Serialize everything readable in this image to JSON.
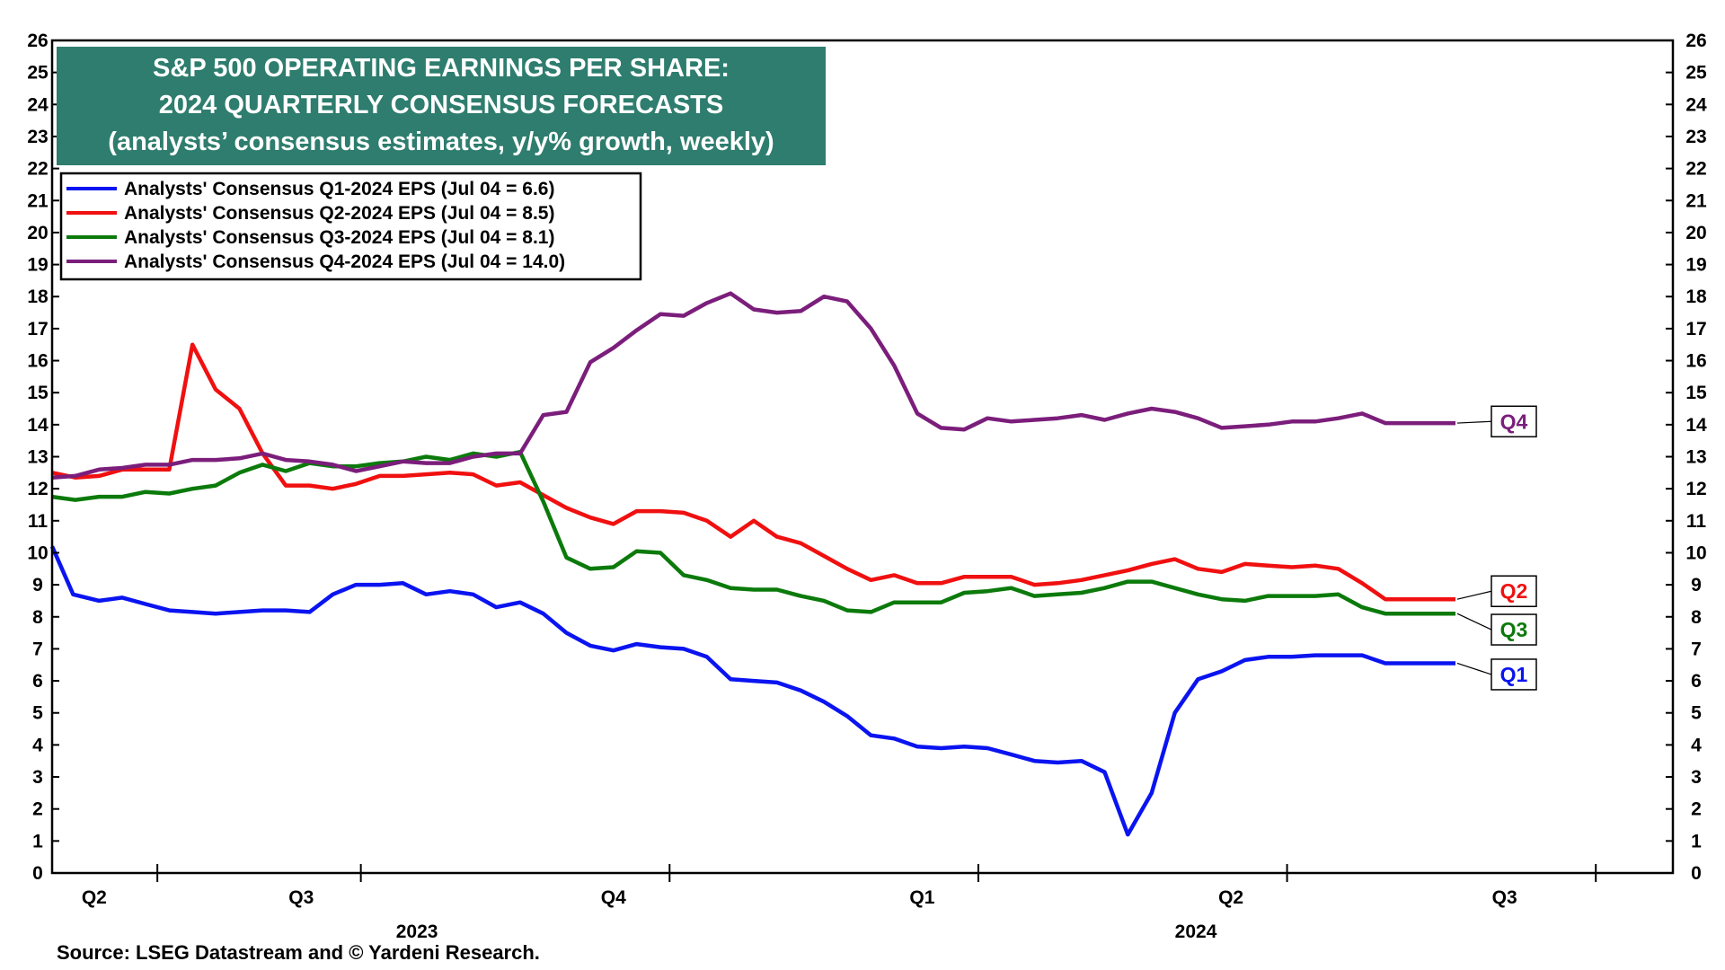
{
  "chart_data": {
    "type": "line",
    "title_lines": [
      "S&P 500 OPERATING EARNINGS PER SHARE:",
      "2024 QUARTERLY CONSENSUS FORECASTS",
      "(analysts’ consensus estimates, y/y% growth, weekly)"
    ],
    "source": "Source: LSEG Datastream and © Yardeni Research.",
    "ylim": [
      0,
      26
    ],
    "yticks": [
      "0",
      "1",
      "2",
      "3",
      "4",
      "5",
      "6",
      "7",
      "8",
      "9",
      "10",
      "11",
      "12",
      "13",
      "14",
      "15",
      "16",
      "17",
      "18",
      "19",
      "20",
      "21",
      "22",
      "23",
      "24",
      "25",
      "26"
    ],
    "xlim": [
      0,
      27.5
    ],
    "quarter_labels": [
      {
        "label": "Q2",
        "x": 0.6
      },
      {
        "label": "Q3",
        "x": 3.55
      },
      {
        "label": "Q4",
        "x": 8.0
      },
      {
        "label": "Q1",
        "x": 12.4
      },
      {
        "label": "Q2",
        "x": 16.8
      },
      {
        "label": "Q3",
        "x": 20.7
      }
    ],
    "year_labels": [
      {
        "label": "2023",
        "x": 5.2
      },
      {
        "label": "2024",
        "x": 16.3
      }
    ],
    "quarter_ticks": [
      1.5,
      4.4,
      8.8,
      13.2,
      17.6,
      22.0
    ],
    "series": [
      {
        "name": "Analysts' Consensus Q1-2024 EPS (Jul 04 = 6.6)",
        "short": "Q1",
        "color": "#0a14f0",
        "label_y": 6.2,
        "x": [
          0,
          0.3,
          0.67,
          1.0,
          1.33,
          1.67,
          2.0,
          2.33,
          2.67,
          3.0,
          3.33,
          3.67,
          4.0,
          4.33,
          4.67,
          5.0,
          5.33,
          5.67,
          6.0,
          6.33,
          6.67,
          7.0,
          7.33,
          7.67,
          8.0,
          8.33,
          8.67,
          9.0,
          9.33,
          9.67,
          10.0,
          10.33,
          10.67,
          11.0,
          11.33,
          11.67,
          12.0,
          12.33,
          12.67,
          13.0,
          13.33,
          13.67,
          14.0,
          14.33,
          14.67,
          15.0,
          15.33,
          15.67,
          16.0,
          16.33,
          16.67,
          17.0,
          17.33,
          17.67,
          18.0,
          18.33,
          18.67,
          19.0,
          19.33,
          19.67,
          20.0
        ],
        "y": [
          10.2,
          8.7,
          8.5,
          8.6,
          8.4,
          8.2,
          8.15,
          8.1,
          8.15,
          8.2,
          8.2,
          8.15,
          8.7,
          9.0,
          9.0,
          9.05,
          8.7,
          8.8,
          8.7,
          8.3,
          8.45,
          8.1,
          7.5,
          7.1,
          6.95,
          7.15,
          7.05,
          7.0,
          6.75,
          6.05,
          6.0,
          5.95,
          5.7,
          5.35,
          4.9,
          4.3,
          4.2,
          3.95,
          3.9,
          3.95,
          3.9,
          3.7,
          3.5,
          3.45,
          3.5,
          3.15,
          1.2,
          2.5,
          5.0,
          6.05,
          6.3,
          6.65,
          6.75,
          6.75,
          6.8,
          6.8,
          6.8,
          6.55,
          6.55,
          6.55,
          6.55
        ]
      },
      {
        "name": "Analysts' Consensus Q2-2024 EPS (Jul 04 = 8.5)",
        "short": "Q2",
        "color": "#f01010",
        "label_y": 8.8,
        "x": [
          0,
          0.33,
          0.67,
          1.0,
          1.33,
          1.67,
          2.0,
          2.33,
          2.67,
          3.0,
          3.33,
          3.67,
          4.0,
          4.33,
          4.67,
          5.0,
          5.33,
          5.67,
          6.0,
          6.33,
          6.67,
          7.0,
          7.33,
          7.67,
          8.0,
          8.33,
          8.67,
          9.0,
          9.33,
          9.67,
          10.0,
          10.33,
          10.67,
          11.0,
          11.33,
          11.67,
          12.0,
          12.33,
          12.67,
          13.0,
          13.33,
          13.67,
          14.0,
          14.33,
          14.67,
          15.0,
          15.33,
          15.67,
          16.0,
          16.33,
          16.67,
          17.0,
          17.33,
          17.67,
          18.0,
          18.33,
          18.67,
          19.0,
          19.33,
          19.67,
          20.0
        ],
        "y": [
          12.5,
          12.35,
          12.4,
          12.6,
          12.6,
          12.6,
          16.5,
          15.1,
          14.5,
          13.1,
          12.1,
          12.1,
          12.0,
          12.15,
          12.4,
          12.4,
          12.45,
          12.5,
          12.45,
          12.1,
          12.2,
          11.8,
          11.4,
          11.1,
          10.9,
          11.3,
          11.3,
          11.25,
          11.0,
          10.5,
          11.0,
          10.5,
          10.3,
          9.9,
          9.5,
          9.15,
          9.3,
          9.05,
          9.05,
          9.25,
          9.25,
          9.25,
          9.0,
          9.05,
          9.15,
          9.3,
          9.45,
          9.65,
          9.8,
          9.5,
          9.4,
          9.65,
          9.6,
          9.55,
          9.6,
          9.5,
          9.05,
          8.55,
          8.55,
          8.55,
          8.55
        ]
      },
      {
        "name": "Analysts' Consensus Q3-2024 EPS (Jul 04 = 8.1)",
        "short": "Q3",
        "color": "#0b7a0b",
        "label_y": 7.6,
        "x": [
          0,
          0.33,
          0.67,
          1.0,
          1.33,
          1.67,
          2.0,
          2.33,
          2.67,
          3.0,
          3.33,
          3.67,
          4.0,
          4.33,
          4.67,
          5.0,
          5.33,
          5.67,
          6.0,
          6.33,
          6.67,
          7.0,
          7.33,
          7.67,
          8.0,
          8.33,
          8.67,
          9.0,
          9.33,
          9.67,
          10.0,
          10.33,
          10.67,
          11.0,
          11.33,
          11.67,
          12.0,
          12.33,
          12.67,
          13.0,
          13.33,
          13.67,
          14.0,
          14.33,
          14.67,
          15.0,
          15.33,
          15.67,
          16.0,
          16.33,
          16.67,
          17.0,
          17.33,
          17.67,
          18.0,
          18.33,
          18.67,
          19.0,
          19.33,
          19.67,
          20.0
        ],
        "y": [
          11.75,
          11.65,
          11.75,
          11.75,
          11.9,
          11.85,
          12.0,
          12.1,
          12.5,
          12.75,
          12.55,
          12.8,
          12.7,
          12.7,
          12.8,
          12.85,
          13.0,
          12.9,
          13.1,
          13.0,
          13.15,
          11.6,
          9.85,
          9.5,
          9.55,
          10.05,
          10.0,
          9.3,
          9.15,
          8.9,
          8.85,
          8.85,
          8.65,
          8.5,
          8.2,
          8.15,
          8.45,
          8.45,
          8.45,
          8.75,
          8.8,
          8.9,
          8.65,
          8.7,
          8.75,
          8.9,
          9.1,
          9.1,
          8.9,
          8.7,
          8.55,
          8.5,
          8.65,
          8.65,
          8.65,
          8.7,
          8.3,
          8.1,
          8.1,
          8.1,
          8.1
        ]
      },
      {
        "name": "Analysts' Consensus Q4-2024 EPS (Jul 04 = 14.0)",
        "short": "Q4",
        "color": "#7b1e7b",
        "label_y": 14.1,
        "x": [
          0,
          0.33,
          0.67,
          1.0,
          1.33,
          1.67,
          2.0,
          2.33,
          2.67,
          3.0,
          3.33,
          3.67,
          4.0,
          4.33,
          4.67,
          5.0,
          5.33,
          5.67,
          6.0,
          6.33,
          6.67,
          7.0,
          7.33,
          7.67,
          8.0,
          8.33,
          8.67,
          9.0,
          9.33,
          9.67,
          10.0,
          10.33,
          10.67,
          11.0,
          11.33,
          11.67,
          12.0,
          12.33,
          12.67,
          13.0,
          13.33,
          13.67,
          14.0,
          14.33,
          14.67,
          15.0,
          15.33,
          15.67,
          16.0,
          16.33,
          16.67,
          17.0,
          17.33,
          17.67,
          18.0,
          18.33,
          18.67,
          19.0,
          19.33,
          19.67,
          20.0
        ],
        "y": [
          12.35,
          12.4,
          12.6,
          12.65,
          12.75,
          12.75,
          12.9,
          12.9,
          12.95,
          13.1,
          12.9,
          12.85,
          12.75,
          12.55,
          12.7,
          12.85,
          12.8,
          12.8,
          13.0,
          13.1,
          13.1,
          14.3,
          14.4,
          15.95,
          16.4,
          16.95,
          17.45,
          17.4,
          17.8,
          18.1,
          17.6,
          17.5,
          17.55,
          18.0,
          17.85,
          17.0,
          15.85,
          14.35,
          13.9,
          13.85,
          14.2,
          14.1,
          14.15,
          14.2,
          14.3,
          14.15,
          14.35,
          14.5,
          14.4,
          14.2,
          13.9,
          13.95,
          14.0,
          14.1,
          14.1,
          14.2,
          14.35,
          14.05,
          14.05,
          14.05,
          14.05
        ]
      }
    ]
  }
}
